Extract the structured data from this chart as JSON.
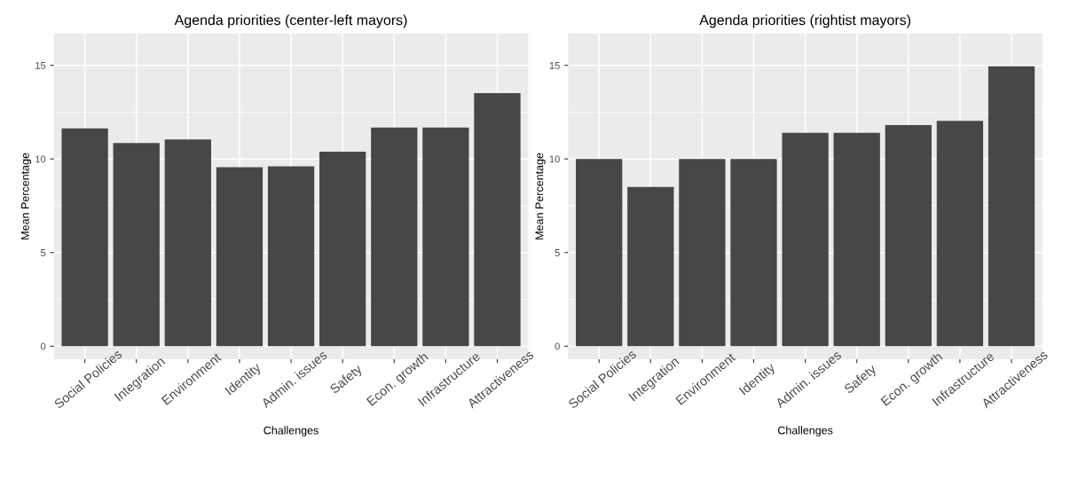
{
  "chart_data": [
    {
      "type": "bar",
      "title": "Agenda priorities (center-left mayors)",
      "xlabel": "Challenges",
      "ylabel": "Mean Percentage",
      "categories": [
        "Social Policies",
        "Integration",
        "Environment",
        "Identity",
        "Admin. issues",
        "Safety",
        "Econ. growth",
        "Infrastructure",
        "Attractiveness"
      ],
      "values": [
        11.63,
        10.85,
        11.04,
        9.56,
        9.61,
        10.39,
        11.68,
        11.68,
        13.51
      ],
      "color": "#474747",
      "ylim": [
        -0.7,
        16.7
      ],
      "yticks": [
        0,
        5,
        10,
        15
      ],
      "grid": true
    },
    {
      "type": "bar",
      "title": "Agenda priorities (rightist mayors)",
      "xlabel": "Challenges",
      "ylabel": "Mean Percentage",
      "categories": [
        "Social Policies",
        "Integration",
        "Environment",
        "Identity",
        "Admin. issues",
        "Safety",
        "Econ. growth",
        "Infrastructure",
        "Attractiveness"
      ],
      "values": [
        10.0,
        8.51,
        10.0,
        10.0,
        11.4,
        11.4,
        11.81,
        12.04,
        14.95
      ],
      "color": "#474747",
      "ylim": [
        -0.7,
        16.7
      ],
      "yticks": [
        0,
        5,
        10,
        15
      ],
      "grid": true
    }
  ]
}
